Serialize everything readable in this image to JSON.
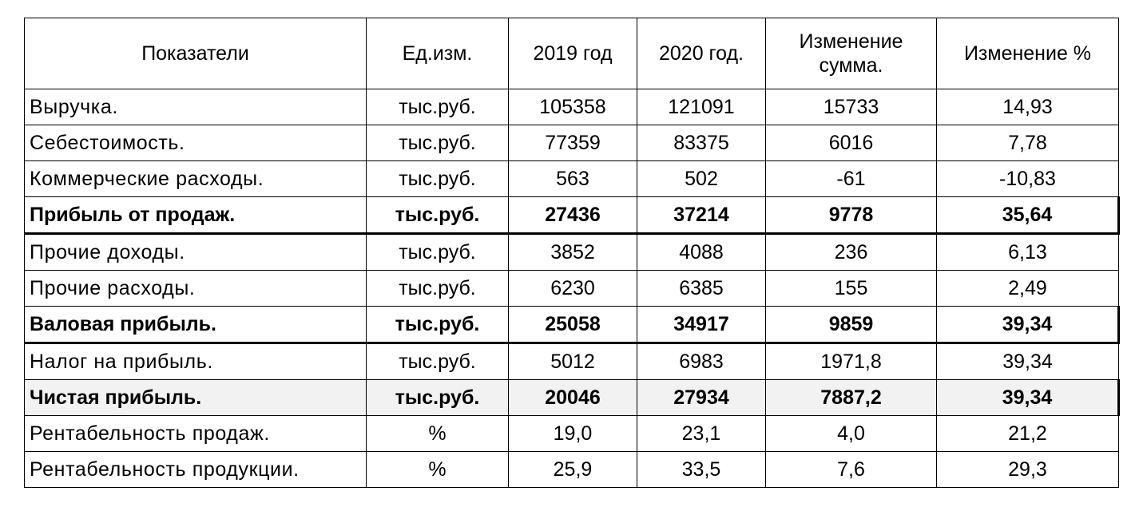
{
  "table": {
    "header": [
      "Показатели",
      "Ед.изм.",
      "2019 год",
      "2020 год.",
      "Изменение сумма.",
      "Изменение %"
    ],
    "rows": [
      [
        "Выручка.",
        "тыс.руб.",
        "105358",
        "121091",
        "15733",
        "14,93"
      ],
      [
        "Себестоимость.",
        "тыс.руб.",
        "77359",
        "83375",
        "6016",
        "7,78"
      ],
      [
        "Коммерческие расходы.",
        "тыс.руб.",
        "563",
        "502",
        "-61",
        "-10,83"
      ],
      [
        "Прибыль от продаж.",
        "тыс.руб.",
        "27436",
        "37214",
        "9778",
        "35,64"
      ],
      [
        "Прочие доходы.",
        "тыс.руб.",
        "3852",
        "4088",
        "236",
        "6,13"
      ],
      [
        "Прочие расходы.",
        "тыс.руб.",
        "6230",
        "6385",
        "155",
        "2,49"
      ],
      [
        "Валовая прибыль.",
        "тыс.руб.",
        "25058",
        "34917",
        "9859",
        "39,34"
      ],
      [
        "Налог на прибыль.",
        "тыс.руб.",
        "5012",
        "6983",
        "1971,8",
        "39,34"
      ],
      [
        "Чистая прибыль.",
        "тыс.руб.",
        "20046",
        "27934",
        "7887,2",
        "39,34"
      ],
      [
        "Рентабельность продаж.",
        "%",
        "19,0",
        "23,1",
        "4,0",
        "21,2"
      ],
      [
        "Рентабельность продукции.",
        "%",
        "25,9",
        "33,5",
        "7,6",
        "29,3"
      ]
    ]
  }
}
